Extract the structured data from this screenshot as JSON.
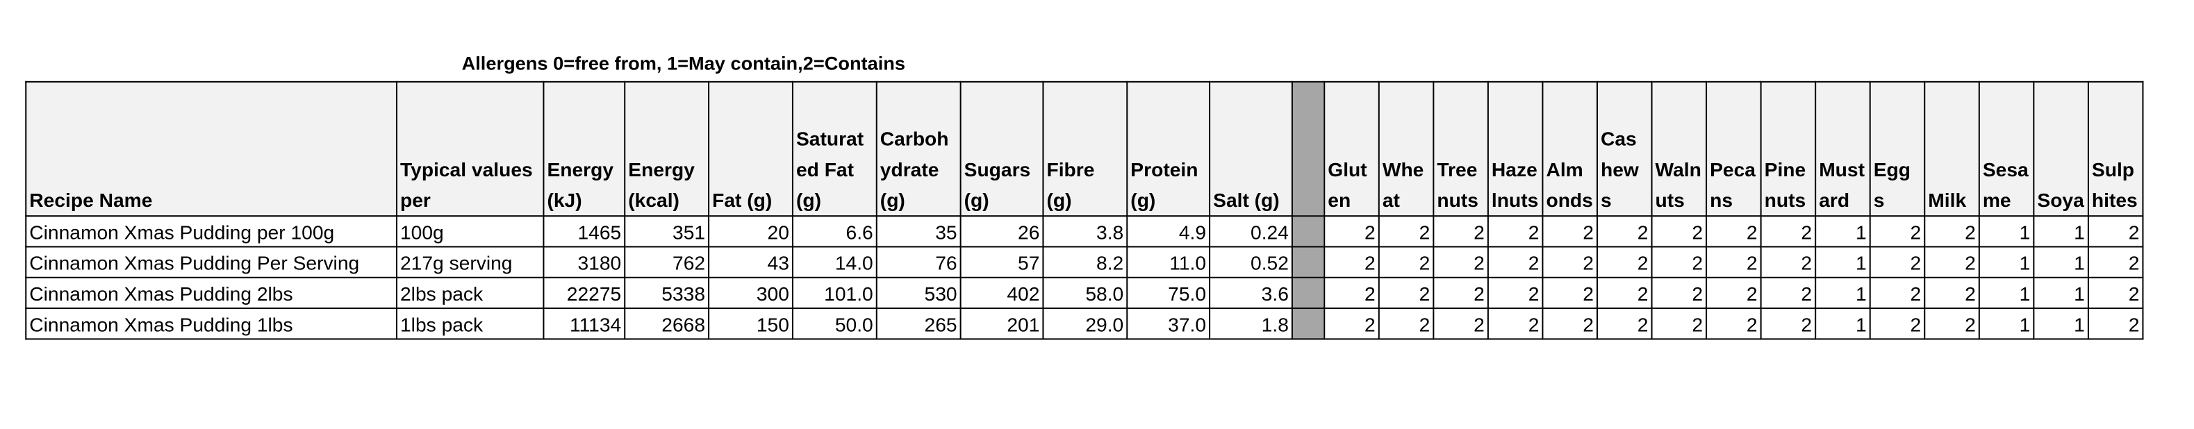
{
  "caption": "Allergens 0=free from, 1=May contain,2=Contains",
  "table": {
    "headers": [
      "Recipe Name",
      "Typical values per",
      "Energy (kJ)",
      "Energy (kcal)",
      "Fat (g)",
      "Saturated Fat (g)",
      "Carbohydrate (g)",
      "Sugars (g)",
      "Fibre (g)",
      "Protein (g)",
      "Salt (g)",
      "Gluten",
      "Wheat",
      "Tree nuts",
      "Hazelnuts",
      "Almonds",
      "Cashews",
      "Walnuts",
      "Pecans",
      "Pine nuts",
      "Mustard",
      "Eggs",
      "Milk",
      "Sesame",
      "Soya",
      "Sulphites"
    ],
    "rows": [
      [
        "Cinnamon Xmas Pudding per 100g",
        "100g",
        "1465",
        "351",
        "20",
        "6.6",
        "35",
        "26",
        "3.8",
        "4.9",
        "0.24",
        "2",
        "2",
        "2",
        "2",
        "2",
        "2",
        "2",
        "2",
        "2",
        "1",
        "2",
        "2",
        "1",
        "1",
        "2"
      ],
      [
        "Cinnamon Xmas Pudding Per Serving",
        "217g serving",
        "3180",
        "762",
        "43",
        "14.0",
        "76",
        "57",
        "8.2",
        "11.0",
        "0.52",
        "2",
        "2",
        "2",
        "2",
        "2",
        "2",
        "2",
        "2",
        "2",
        "1",
        "2",
        "2",
        "1",
        "1",
        "2"
      ],
      [
        "Cinnamon Xmas Pudding 2lbs",
        "2lbs pack",
        "22275",
        "5338",
        "300",
        "101.0",
        "530",
        "402",
        "58.0",
        "75.0",
        "3.6",
        "2",
        "2",
        "2",
        "2",
        "2",
        "2",
        "2",
        "2",
        "2",
        "1",
        "2",
        "2",
        "1",
        "1",
        "2"
      ],
      [
        "Cinnamon Xmas Pudding 1lbs",
        "1lbs pack",
        "11134",
        "2668",
        "150",
        "50.0",
        "265",
        "201",
        "29.0",
        "37.0",
        "1.8",
        "2",
        "2",
        "2",
        "2",
        "2",
        "2",
        "2",
        "2",
        "2",
        "1",
        "2",
        "2",
        "1",
        "1",
        "2"
      ]
    ]
  }
}
